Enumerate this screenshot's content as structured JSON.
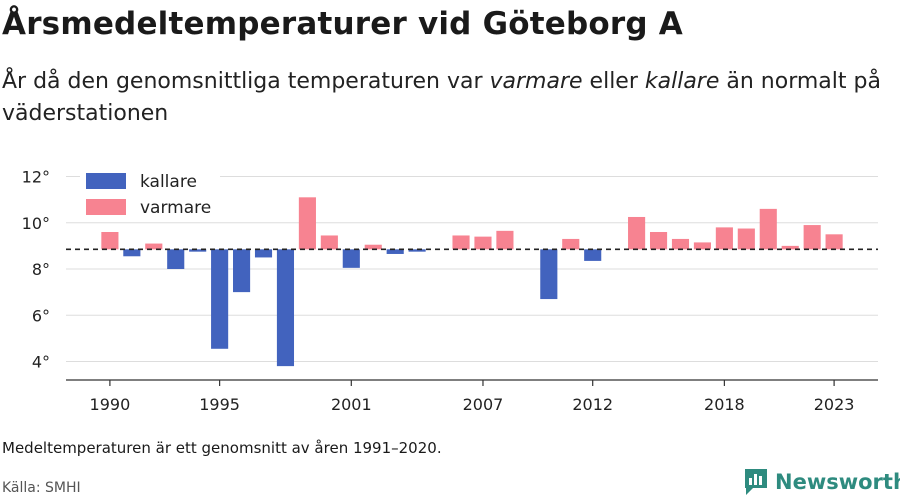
{
  "title": "Årsmedeltemperaturer vid Göteborg A",
  "subtitle": {
    "part1": "År då den genomsnittliga temperaturen var ",
    "warm": "varmare",
    "part2": " eller ",
    "cold": "kallare",
    "part3": " än normalt på väderstationen"
  },
  "note": "Medeltemperaturen är ett genomsnitt av åren 1991–2020.",
  "source": "Källa: SMHI",
  "brand": "Newsworthy",
  "colors": {
    "colder": "#4263be",
    "warmer": "#f78391",
    "brand": "#2e8b7f"
  },
  "chart_data": {
    "type": "bar",
    "baseline": 8.85,
    "ylim": [
      3.2,
      12.8
    ],
    "yticks": [
      4,
      6,
      8,
      10,
      12
    ],
    "ytick_labels": [
      "4°",
      "6°",
      "8°",
      "10°",
      "12°"
    ],
    "xlim": [
      1988,
      2025
    ],
    "xticks": [
      1990,
      1995,
      2001,
      2007,
      2012,
      2018,
      2023
    ],
    "xtick_labels": [
      "1990",
      "1995",
      "2001",
      "2007",
      "2012",
      "2018",
      "2023"
    ],
    "legend": {
      "position": "top-left",
      "colder_label": "kallare",
      "warmer_label": "varmare"
    },
    "grid": true,
    "x": [
      1990,
      1991,
      1992,
      1993,
      1994,
      1995,
      1996,
      1997,
      1998,
      1999,
      2000,
      2001,
      2002,
      2003,
      2004,
      2005,
      2006,
      2007,
      2008,
      2009,
      2010,
      2011,
      2012,
      2013,
      2014,
      2015,
      2016,
      2017,
      2018,
      2019,
      2020,
      2021,
      2022,
      2023
    ],
    "values": [
      9.6,
      8.55,
      9.1,
      8.0,
      8.75,
      4.55,
      7.0,
      8.5,
      3.8,
      11.1,
      9.45,
      8.05,
      9.05,
      8.65,
      8.75,
      null,
      9.45,
      9.4,
      9.65,
      null,
      6.7,
      9.3,
      8.35,
      null,
      10.25,
      9.6,
      9.3,
      9.15,
      9.8,
      9.75,
      10.6,
      9.0,
      9.9,
      9.5
    ]
  }
}
